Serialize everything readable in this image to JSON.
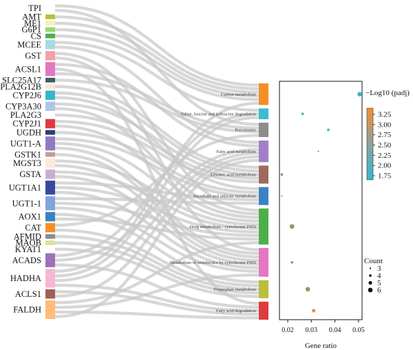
{
  "chart_data": [
    {
      "type": "sankey",
      "genes": [
        {
          "name": "TPI",
          "color": "#ffffff"
        },
        {
          "name": "AMT",
          "color": "#bcbd3a"
        },
        {
          "name": "ME1",
          "color": "#f5f2b8"
        },
        {
          "name": "G6P1",
          "color": "#9bd37a"
        },
        {
          "name": "CS",
          "color": "#4daf4a"
        },
        {
          "name": "MCEE",
          "color": "#a6dbe3"
        },
        {
          "name": "GST",
          "color": "#f4a0a6"
        },
        {
          "name": "ACSL1",
          "color": "#e377c2"
        },
        {
          "name": "SLC25A17",
          "color": "#3f5f5f"
        },
        {
          "name": "PLA2G12B",
          "color": "#fbe6d0"
        },
        {
          "name": "CYP2J6",
          "color": "#35b7c9"
        },
        {
          "name": "CYP3A30",
          "color": "#aec7e8"
        },
        {
          "name": "PLA2G3",
          "color": "#ffffff"
        },
        {
          "name": "CYP2J1",
          "color": "#e03a3e"
        },
        {
          "name": "UGDH",
          "color": "#26407a"
        },
        {
          "name": "UGT1-A",
          "color": "#8e7cc3"
        },
        {
          "name": "GSTK1",
          "color": "#c49c94"
        },
        {
          "name": "MGST3",
          "color": "#fbe9dc"
        },
        {
          "name": "GSTA",
          "color": "#c5b0d5"
        },
        {
          "name": "UGT1A1",
          "color": "#3949a0"
        },
        {
          "name": "UGT1-1",
          "color": "#7ea6dc"
        },
        {
          "name": "AOX1",
          "color": "#3a82c4"
        },
        {
          "name": "CAT",
          "color": "#f58e28"
        },
        {
          "name": "AFMID",
          "color": "#8c8c8c"
        },
        {
          "name": "MAOB",
          "color": "#dbe29a"
        },
        {
          "name": "KYAT1",
          "color": "#ffffff"
        },
        {
          "name": "ACADS",
          "color": "#9b72b7"
        },
        {
          "name": "HADHA",
          "color": "#f7b6d2"
        },
        {
          "name": "ACLS1",
          "color": "#a06055"
        },
        {
          "name": "FALDH",
          "color": "#ffbb78"
        }
      ],
      "pathways": [
        {
          "name": "Carbon metabolism",
          "color": "#f58e28"
        },
        {
          "name": "Valine, leucine and isoleucine degradation",
          "color": "#3cbccf"
        },
        {
          "name": "Peroxisome",
          "color": "#8c8c8c"
        },
        {
          "name": "Fatty acid metabolism",
          "color": "#a07fc8"
        },
        {
          "name": "Linoleic acid metabolism",
          "color": "#9e6a60"
        },
        {
          "name": "Ascorbate and aldarate metabolism",
          "color": "#3a82c4"
        },
        {
          "name": "Drug metabolism - cytochrome P450",
          "color": "#4daf4a"
        },
        {
          "name": "Metabolism of xenobiotics by cytochrome P450",
          "color": "#e377c2"
        },
        {
          "name": "Tryptophan metabolism",
          "color": "#bcbd3a"
        },
        {
          "name": "Fatty acid degradation",
          "color": "#e03a3e"
        }
      ]
    },
    {
      "type": "scatter",
      "xlabel": "Gene ratio",
      "xticks": [
        "0.02",
        "0.03",
        "0.04",
        "0.05"
      ],
      "xlim": [
        0.0165,
        0.0515
      ],
      "points": [
        {
          "pathway": "Carbon metabolism",
          "ratio": 0.0505,
          "count": 6,
          "padj": 1.78
        },
        {
          "pathway": "Valine, leucine and isoleucine degradation",
          "ratio": 0.0263,
          "count": 4,
          "padj": 1.92
        },
        {
          "pathway": "Peroxisome",
          "ratio": 0.0372,
          "count": 4,
          "padj": 1.85
        },
        {
          "pathway": "Fatty acid metabolism",
          "ratio": 0.033,
          "count": 3,
          "padj": 2.05
        },
        {
          "pathway": "Linoleic acid metabolism",
          "ratio": 0.0175,
          "count": 4,
          "padj": 2.65
        },
        {
          "pathway": "Ascorbate and aldarate metabolism",
          "ratio": 0.0175,
          "count": 3,
          "padj": 2.6
        },
        {
          "pathway": "Drug metabolism - cytochrome P450",
          "ratio": 0.0218,
          "count": 6,
          "padj": 2.62
        },
        {
          "pathway": "Metabolism of xenobiotics by cytochrome P450",
          "ratio": 0.0218,
          "count": 4,
          "padj": 2.62
        },
        {
          "pathway": "Tryptophan metabolism",
          "ratio": 0.0285,
          "count": 6,
          "padj": 2.65
        },
        {
          "pathway": "Fatty acid degradation",
          "ratio": 0.031,
          "count": 5,
          "padj": 3.35
        }
      ],
      "colorbar": {
        "title": "−Log10 (padj)",
        "ticks": [
          "3.25",
          "3.00",
          "2.75",
          "2.50",
          "2.25",
          "2.00",
          "1.75"
        ],
        "range": [
          1.65,
          3.4
        ],
        "low_color": "#35b7c9",
        "high_color": "#f58e28"
      },
      "size_legend": {
        "title": "Count",
        "values": [
          3,
          4,
          5,
          6
        ]
      }
    }
  ],
  "links": [
    [
      0,
      0
    ],
    [
      1,
      0
    ],
    [
      2,
      0
    ],
    [
      3,
      0
    ],
    [
      4,
      0
    ],
    [
      0,
      2
    ],
    [
      5,
      1
    ],
    [
      5,
      3
    ],
    [
      6,
      6
    ],
    [
      6,
      7
    ],
    [
      7,
      3
    ],
    [
      7,
      9
    ],
    [
      7,
      2
    ],
    [
      8,
      2
    ],
    [
      9,
      4
    ],
    [
      10,
      4
    ],
    [
      10,
      5
    ],
    [
      11,
      4
    ],
    [
      11,
      6
    ],
    [
      12,
      4
    ],
    [
      13,
      4
    ],
    [
      13,
      6
    ],
    [
      14,
      5
    ],
    [
      15,
      5
    ],
    [
      15,
      6
    ],
    [
      15,
      7
    ],
    [
      16,
      7
    ],
    [
      17,
      6
    ],
    [
      17,
      7
    ],
    [
      18,
      6
    ],
    [
      18,
      7
    ],
    [
      19,
      5
    ],
    [
      19,
      6
    ],
    [
      19,
      7
    ],
    [
      20,
      5
    ],
    [
      20,
      6
    ],
    [
      20,
      7
    ],
    [
      21,
      8
    ],
    [
      21,
      6
    ],
    [
      22,
      2
    ],
    [
      22,
      8
    ],
    [
      23,
      8
    ],
    [
      24,
      8
    ],
    [
      25,
      8
    ],
    [
      26,
      1
    ],
    [
      26,
      3
    ],
    [
      26,
      9
    ],
    [
      27,
      0
    ],
    [
      27,
      1
    ],
    [
      27,
      3
    ],
    [
      27,
      9
    ],
    [
      28,
      9
    ],
    [
      28,
      3
    ],
    [
      29,
      6
    ],
    [
      29,
      7
    ],
    [
      29,
      9
    ],
    [
      29,
      3
    ]
  ]
}
